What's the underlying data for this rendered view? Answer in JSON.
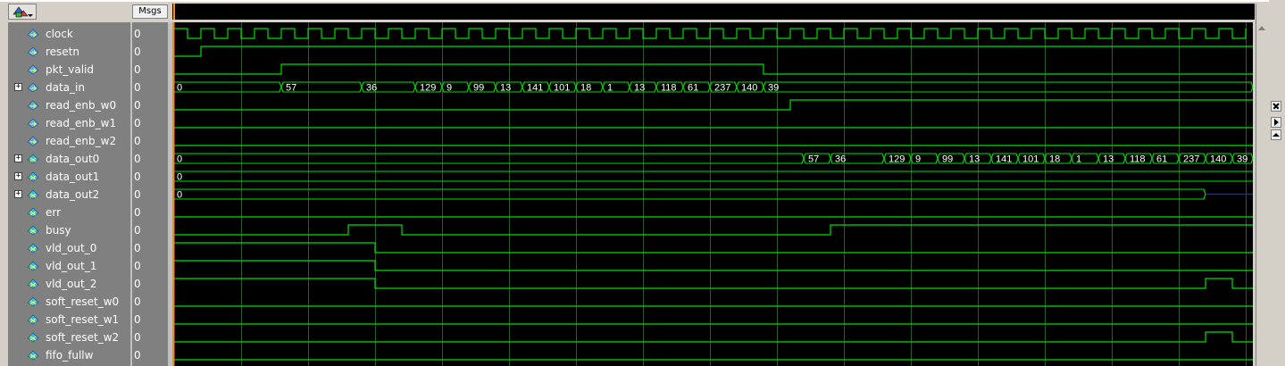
{
  "toolbar": {
    "menu_icon": "wave-tool-icon"
  },
  "header": {
    "msgs_label": "Msgs"
  },
  "colors": {
    "wave": "#00e000",
    "grid": "#2c5a2c",
    "cursor": "#ff8a00",
    "bus_text": "#ffffff",
    "highz": "#0030ff",
    "signal_icon_in": "#5fb0e8",
    "signal_icon_out": "#36c0d8"
  },
  "signals": [
    {
      "name": "clock",
      "value": "0",
      "kind": "clock",
      "expand": false,
      "icon": "input-signal-icon"
    },
    {
      "name": "resetn",
      "value": "0",
      "kind": "bit",
      "expand": false,
      "icon": "input-signal-icon",
      "init": 0,
      "toggles": [
        1
      ]
    },
    {
      "name": "pkt_valid",
      "value": "0",
      "kind": "bit",
      "expand": false,
      "icon": "input-signal-icon",
      "init": 0,
      "toggles": [
        4,
        22
      ]
    },
    {
      "name": "data_in",
      "value": "0",
      "kind": "bus",
      "expand": true,
      "icon": "input-signal-icon",
      "bus_values": [
        "0",
        "57",
        "36",
        "129",
        "9",
        "99",
        "13",
        "141",
        "101",
        "18",
        "1",
        "13",
        "118",
        "61",
        "237",
        "140",
        "39"
      ],
      "bus_starts": [
        0,
        4,
        7,
        9,
        10,
        11,
        12,
        13,
        14,
        15,
        16,
        17,
        18,
        19,
        20,
        21,
        22
      ]
    },
    {
      "name": "read_enb_w0",
      "value": "0",
      "kind": "bit",
      "expand": false,
      "icon": "input-signal-icon",
      "init": 0,
      "toggles": [
        23
      ]
    },
    {
      "name": "read_enb_w1",
      "value": "0",
      "kind": "bit",
      "expand": false,
      "icon": "input-signal-icon",
      "init": 0,
      "toggles": []
    },
    {
      "name": "read_enb_w2",
      "value": "0",
      "kind": "bit",
      "expand": false,
      "icon": "input-signal-icon",
      "init": 0,
      "toggles": []
    },
    {
      "name": "data_out0",
      "value": "0",
      "kind": "bus",
      "expand": true,
      "icon": "output-signal-icon",
      "bus_values": [
        "0",
        "57",
        "36",
        "129",
        "9",
        "99",
        "13",
        "141",
        "101",
        "18",
        "1",
        "13",
        "118",
        "61",
        "237",
        "140",
        "39"
      ],
      "bus_starts": [
        0,
        23.5,
        24.5,
        26.5,
        27.5,
        28.5,
        29.5,
        30.5,
        31.5,
        32.5,
        33.5,
        34.5,
        35.5,
        36.5,
        37.5,
        38.5,
        39.5
      ]
    },
    {
      "name": "data_out1",
      "value": "0",
      "kind": "bus",
      "expand": true,
      "icon": "output-signal-icon",
      "bus_values": [
        "0"
      ],
      "bus_starts": [
        0
      ]
    },
    {
      "name": "data_out2",
      "value": "0",
      "kind": "bus",
      "expand": true,
      "icon": "output-signal-icon",
      "bus_values": [
        "0"
      ],
      "bus_starts": [
        0
      ],
      "highz_from": 38.5
    },
    {
      "name": "err",
      "value": "0",
      "kind": "bit",
      "expand": false,
      "icon": "output-signal-icon",
      "init": 0,
      "toggles": []
    },
    {
      "name": "busy",
      "value": "0",
      "kind": "bit",
      "expand": false,
      "icon": "output-signal-icon",
      "init": 0,
      "toggles": [
        6.5,
        8.5,
        24.5
      ]
    },
    {
      "name": "vld_out_0",
      "value": "0",
      "kind": "bit",
      "expand": false,
      "icon": "output-signal-icon",
      "init": 1,
      "toggles": [
        7.5
      ]
    },
    {
      "name": "vld_out_1",
      "value": "0",
      "kind": "bit",
      "expand": false,
      "icon": "output-signal-icon",
      "init": 1,
      "toggles": [
        7.5
      ]
    },
    {
      "name": "vld_out_2",
      "value": "0",
      "kind": "bit",
      "expand": false,
      "icon": "output-signal-icon",
      "init": 1,
      "toggles": [
        7.5,
        38.5,
        39.5
      ]
    },
    {
      "name": "soft_reset_w0",
      "value": "0",
      "kind": "bit",
      "expand": false,
      "icon": "output-signal-icon",
      "init": 0,
      "toggles": []
    },
    {
      "name": "soft_reset_w1",
      "value": "0",
      "kind": "bit",
      "expand": false,
      "icon": "output-signal-icon",
      "init": 0,
      "toggles": []
    },
    {
      "name": "soft_reset_w2",
      "value": "0",
      "kind": "bit",
      "expand": false,
      "icon": "output-signal-icon",
      "init": 0,
      "toggles": [
        38.5,
        39.5
      ]
    },
    {
      "name": "fifo_fullw",
      "value": "0",
      "kind": "bit",
      "expand": false,
      "icon": "output-signal-icon",
      "init": 0,
      "toggles": []
    }
  ],
  "clock_cycles": 40,
  "grid_every_cycles": 2.5,
  "scrollbar": {
    "up_icon": "scroll-up-icon"
  },
  "side_buttons": {
    "close_icon": "close-icon",
    "expand_icon": "arrow-right-icon",
    "up_icon": "arrow-up-icon"
  }
}
